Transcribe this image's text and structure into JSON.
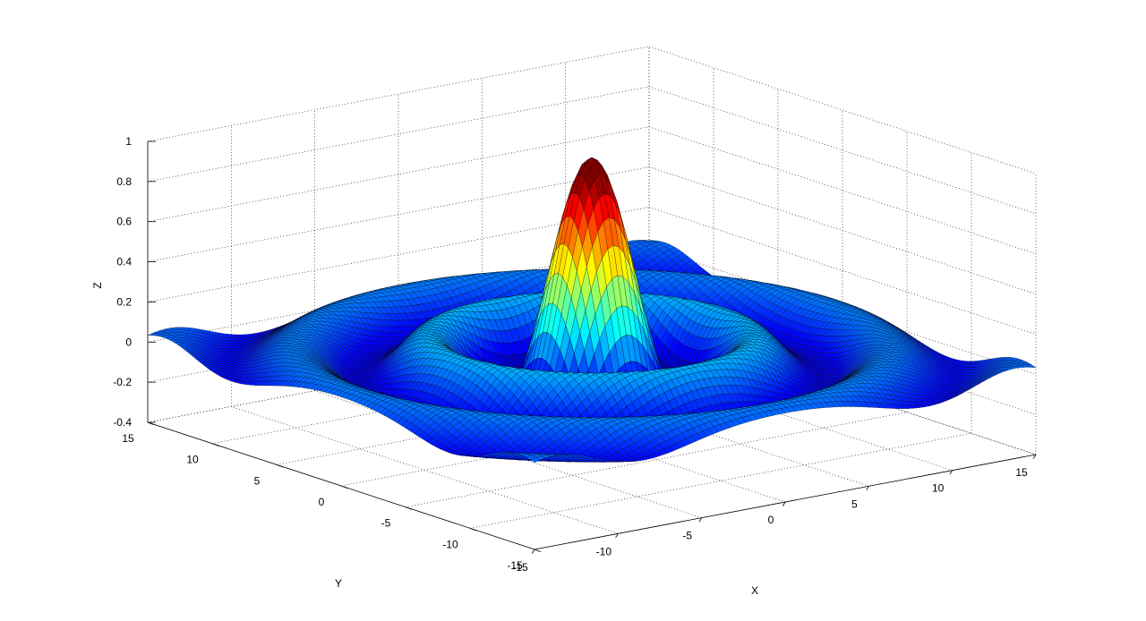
{
  "chart_data": {
    "type": "surface",
    "function": "z = sin(r)/r, r = sqrt(x^2 + y^2)",
    "title": "",
    "xlabel": "X",
    "ylabel": "Y",
    "zlabel": "Z",
    "xlim": [
      -15,
      15
    ],
    "ylim": [
      -15,
      15
    ],
    "zlim": [
      -0.4,
      1
    ],
    "xticks": [
      -15,
      -10,
      -5,
      0,
      5,
      10,
      15
    ],
    "yticks": [
      -15,
      -10,
      -5,
      0,
      5,
      10,
      15
    ],
    "zticks": [
      -0.4,
      -0.2,
      0,
      0.2,
      0.4,
      0.6,
      0.8,
      1
    ],
    "xtick_labels": [
      "-15",
      "-10",
      "-5",
      "0",
      "5",
      "10",
      "15"
    ],
    "ytick_labels": [
      "-15",
      "-10",
      "-5",
      "0",
      "5",
      "10",
      "15"
    ],
    "ztick_labels": [
      "-0.4",
      "-0.2",
      "0",
      "0.2",
      "0.4",
      "0.6",
      "0.8",
      "1"
    ],
    "grid": true,
    "grid_style": "dotted",
    "colormap": "jet",
    "edge_color": "#000000",
    "zmax": 0.9,
    "zmin": -0.2,
    "colors": {
      "jet": [
        "#00007f",
        "#0000ff",
        "#007fff",
        "#00ffff",
        "#7fff7f",
        "#ffff00",
        "#ff7f00",
        "#ff0000",
        "#7f0000"
      ]
    }
  }
}
